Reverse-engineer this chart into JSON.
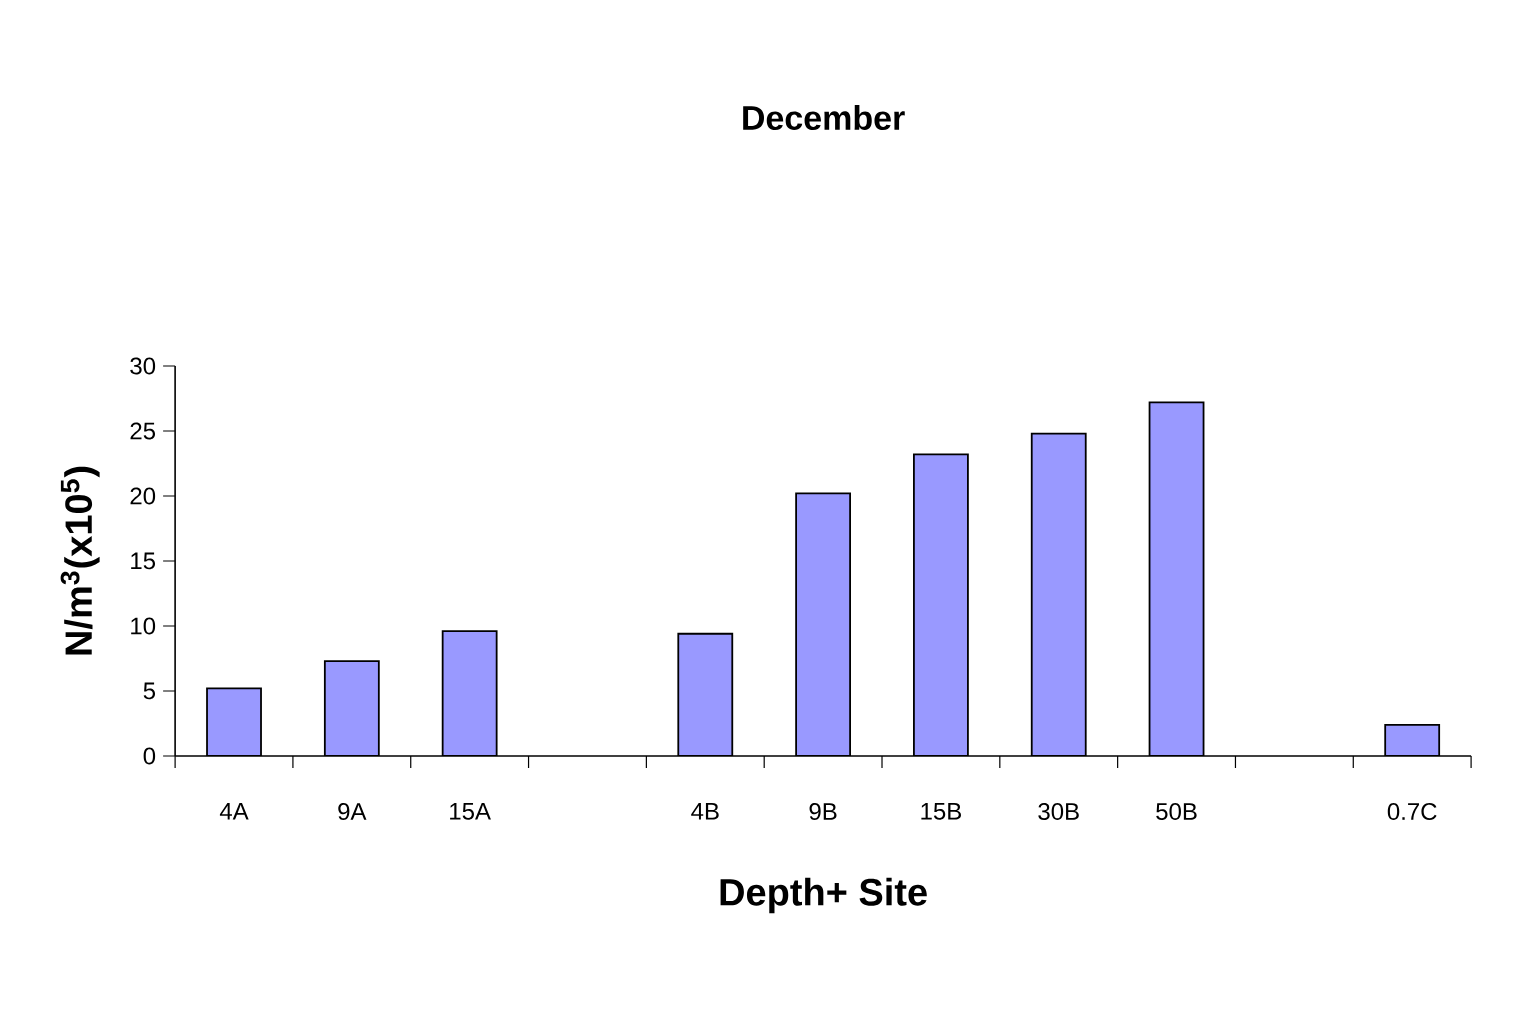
{
  "chart_data": {
    "type": "bar",
    "title": "December",
    "xlabel": "Depth+ Site",
    "ylabel": "N/m$^{3}$(x10$^{5}$)",
    "categories": [
      "4A",
      "9A",
      "15A",
      null,
      "4B",
      "9B",
      "15B",
      "30B",
      "50B",
      null,
      "0.7C"
    ],
    "values": [
      5.2,
      7.3,
      9.6,
      null,
      9.4,
      20.2,
      23.2,
      24.8,
      27.2,
      null,
      2.4
    ],
    "color": "#9999ff",
    "ylim": [
      0,
      30
    ],
    "yticks": [
      0,
      5,
      10,
      15,
      20,
      25,
      30
    ]
  }
}
